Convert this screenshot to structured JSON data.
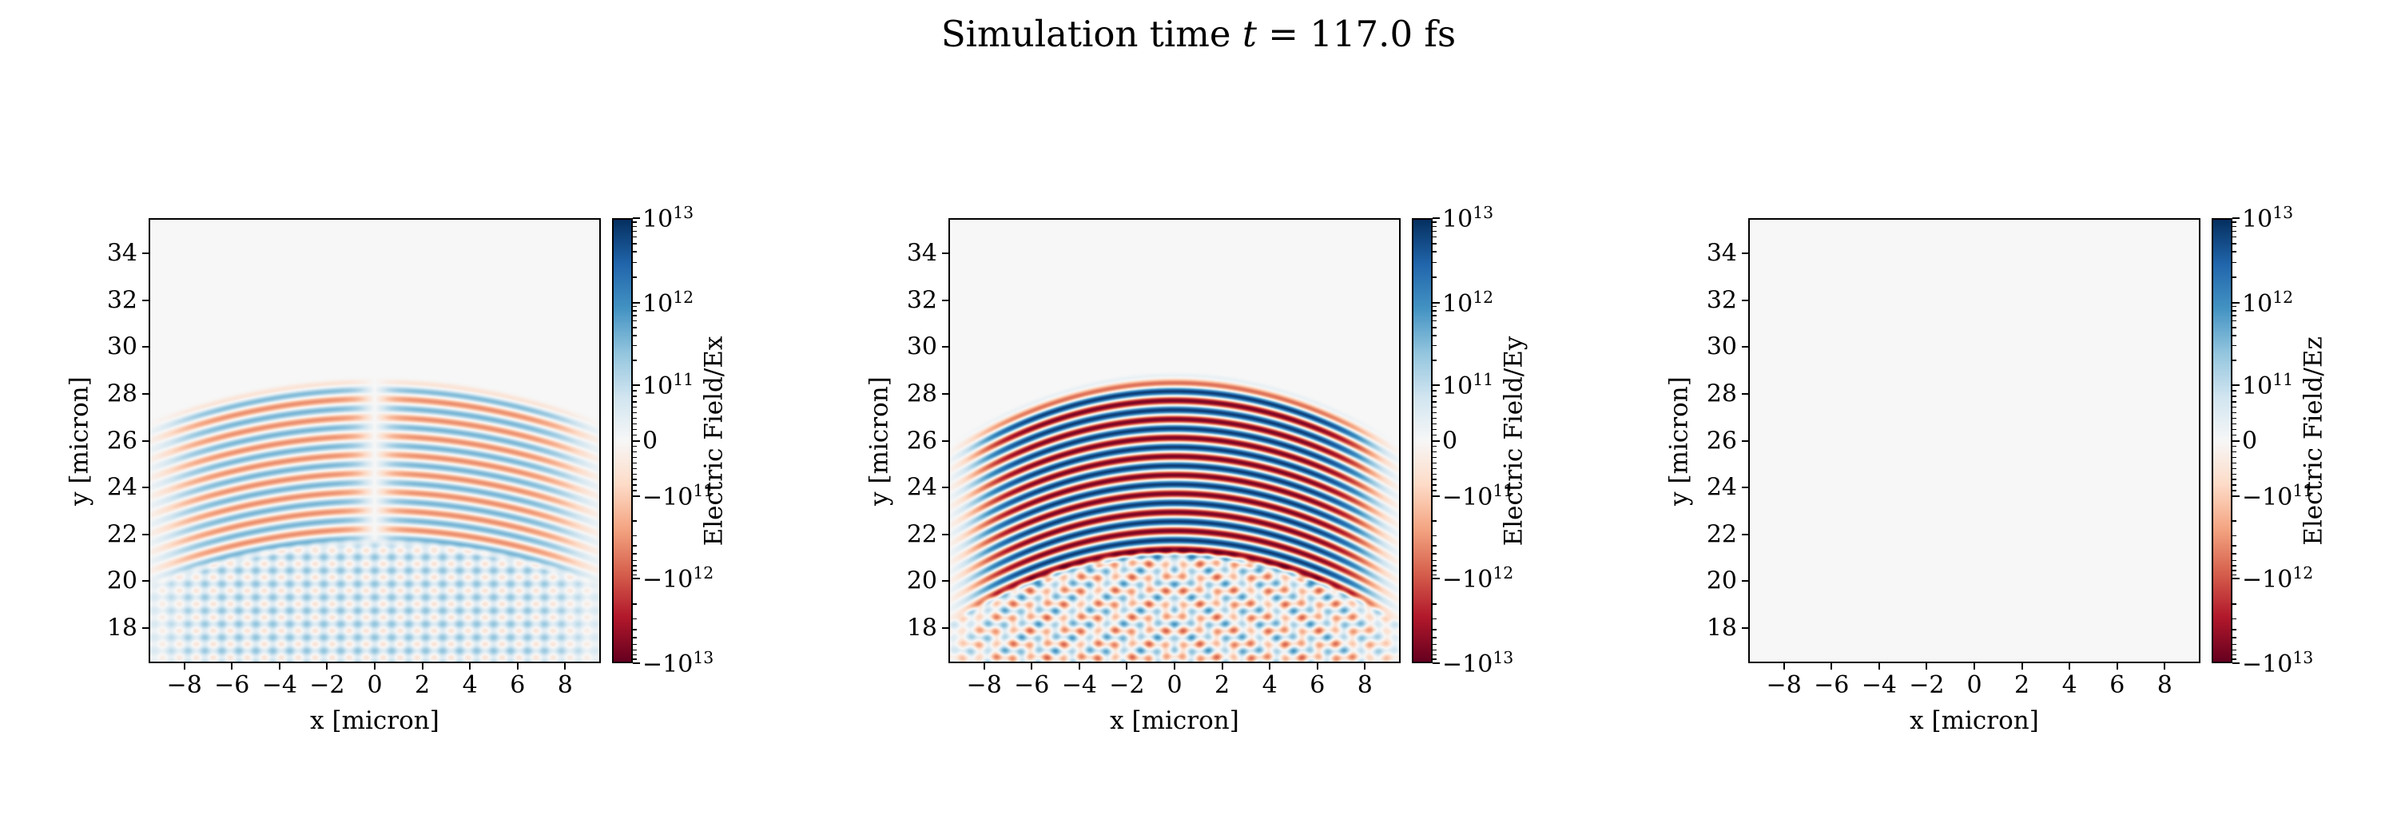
{
  "figure": {
    "title": {
      "prefix": "Simulation time ",
      "variable": "t",
      "suffix": " = 117.0 fs",
      "full_text": "Simulation time t = 117.0 fs"
    }
  },
  "chart_data": {
    "type": "heatmap",
    "layout": "1x3",
    "time_fs": 117.0,
    "colormap": "RdBu",
    "x_axis": {
      "label": "x [micron]",
      "range": [
        -9.5,
        9.5
      ],
      "ticks": [
        -8,
        -6,
        -4,
        -2,
        0,
        2,
        4,
        6,
        8
      ]
    },
    "y_axis": {
      "label": "y [micron]",
      "range": [
        16.5,
        35.5
      ],
      "ticks": [
        18,
        20,
        22,
        24,
        26,
        28,
        30,
        32,
        34
      ]
    },
    "colorbar": {
      "scale": "symlog",
      "linthresh": 100000000000.0,
      "range": [
        -10000000000000.0,
        10000000000000.0
      ],
      "ticks": [
        {
          "sign": "",
          "mantissa": "10",
          "exp": "13",
          "frac": 0.0
        },
        {
          "sign": "",
          "mantissa": "10",
          "exp": "12",
          "frac": 0.19
        },
        {
          "sign": "",
          "mantissa": "10",
          "exp": "11",
          "frac": 0.375
        },
        {
          "sign": "",
          "mantissa": "0",
          "exp": "",
          "frac": 0.5
        },
        {
          "sign": "−",
          "mantissa": "10",
          "exp": "11",
          "frac": 0.625
        },
        {
          "sign": "−",
          "mantissa": "10",
          "exp": "12",
          "frac": 0.81
        },
        {
          "sign": "−",
          "mantissa": "10",
          "exp": "13",
          "frac": 1.0
        }
      ]
    },
    "panels": [
      {
        "id": "ex",
        "field": "Ex",
        "colorbar_label": "Electric Field/Ex",
        "pattern": "ex",
        "wave": {
          "wavelength_um": 0.8,
          "band_y": [
            21.4,
            28.8
          ],
          "peak_amplitude": 3000000000000.0,
          "center_null": true,
          "interference_below_y": 21.9
        }
      },
      {
        "id": "ey",
        "field": "Ey",
        "colorbar_label": "Electric Field/Ey",
        "pattern": "ey",
        "wave": {
          "wavelength_um": 0.8,
          "band_y": [
            20.9,
            29.0
          ],
          "peak_amplitude": 9000000000000.0,
          "center_null": false,
          "interference_below_y": 21.5
        }
      },
      {
        "id": "ez",
        "field": "Ez",
        "colorbar_label": "Electric Field/Ez",
        "pattern": "ez",
        "wave": {
          "peak_amplitude": 0
        }
      }
    ]
  }
}
